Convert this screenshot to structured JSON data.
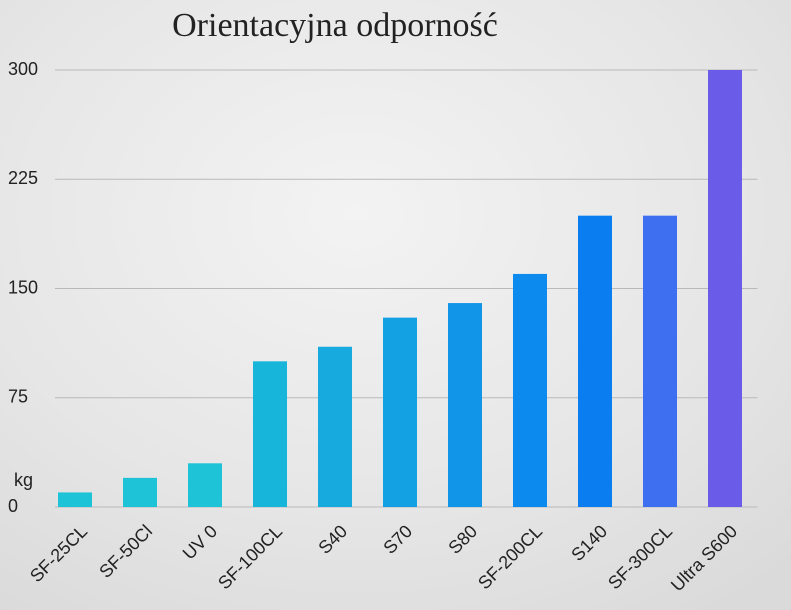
{
  "chart_data": {
    "type": "bar",
    "title": "Orientacyjna odporność",
    "y_label": "kg",
    "categories": [
      "SF-25CL",
      "SF-50Cl",
      "UV 0",
      "SF-100CL",
      "S40",
      "S70",
      "S80",
      "SF-200CL",
      "S140",
      "SF-300CL",
      "Ultra S600"
    ],
    "values": [
      10,
      20,
      30,
      100,
      110,
      130,
      140,
      160,
      200,
      200,
      300
    ],
    "colors": [
      "#1ec3d8",
      "#1ec3d8",
      "#1ec3d8",
      "#18b5da",
      "#16aadf",
      "#14a1e3",
      "#1195e8",
      "#0c8aee",
      "#0a7ef1",
      "#3d6ff0",
      "#6a5be8"
    ],
    "ylim": [
      0,
      300
    ],
    "yticks": [
      0,
      75,
      150,
      225,
      300
    ],
    "grid": true
  }
}
